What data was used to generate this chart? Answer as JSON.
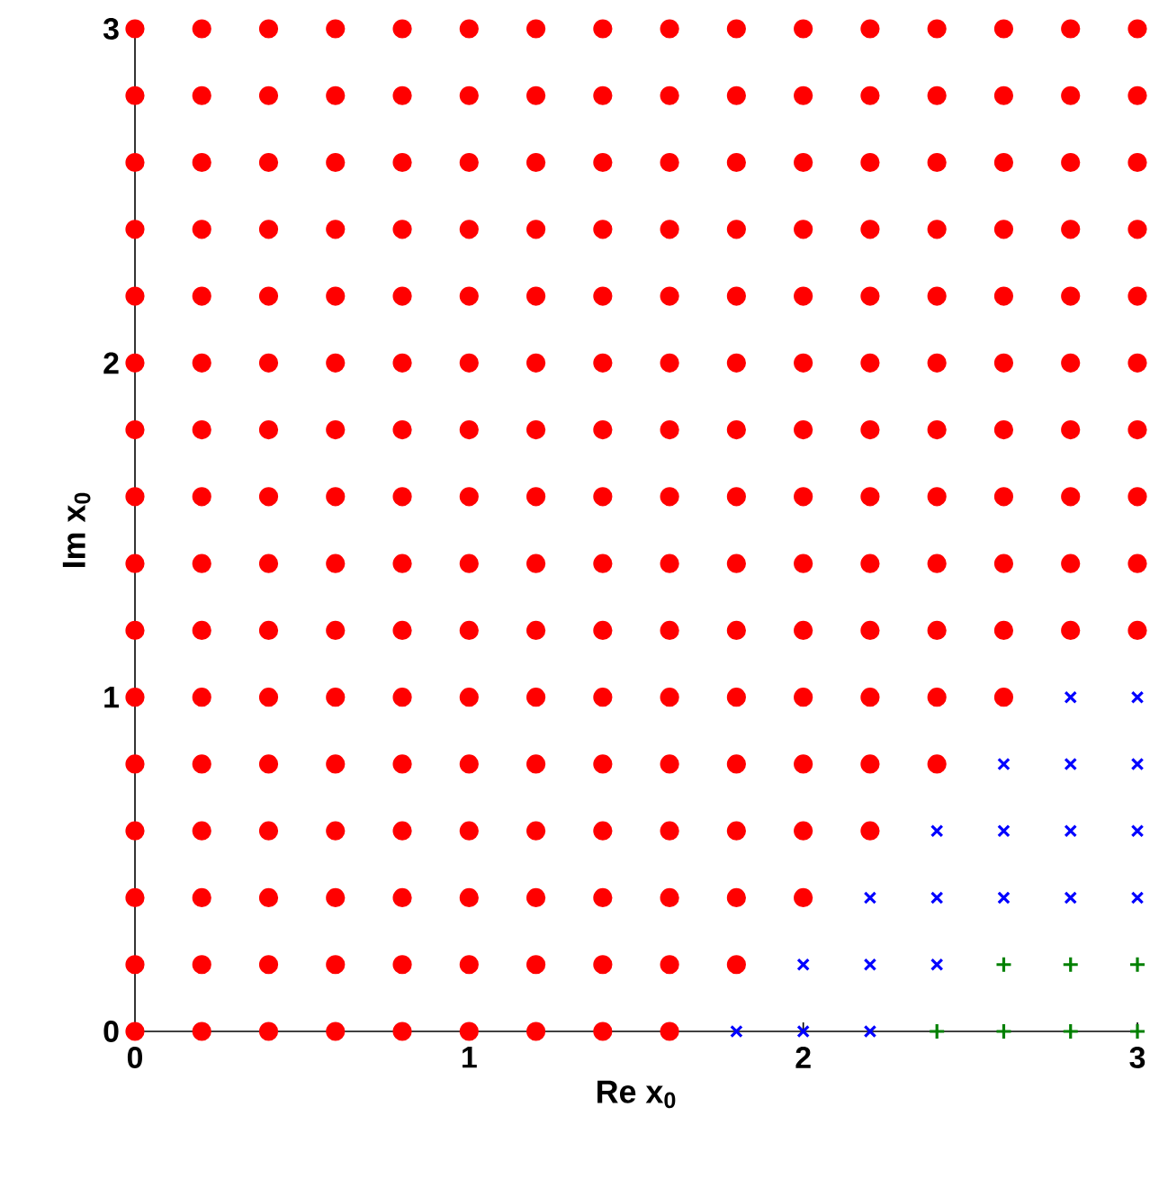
{
  "chart_data": {
    "type": "scatter",
    "xlabel": "Re x$_{0}$",
    "ylabel": "Im x$_{0}$",
    "xlim": [
      0,
      3
    ],
    "ylim": [
      0,
      3
    ],
    "xticks": [
      0,
      1,
      2,
      3
    ],
    "yticks": [
      0,
      1,
      2,
      3
    ],
    "series": [
      {
        "color": "#ff0000",
        "marker": "circle",
        "x": [
          0,
          0.2,
          0.4,
          0.6,
          0.8,
          1,
          1.2,
          1.4,
          1.6,
          0,
          0.2,
          0.4,
          0.6,
          0.8,
          1,
          1.2,
          1.4,
          1.6,
          1.8,
          0,
          0.2,
          0.4,
          0.6,
          0.8,
          1,
          1.2,
          1.4,
          1.6,
          1.8,
          2,
          0,
          0.2,
          0.4,
          0.6,
          0.8,
          1,
          1.2,
          1.4,
          1.6,
          1.8,
          2,
          2.2,
          0,
          0.2,
          0.4,
          0.6,
          0.8,
          1,
          1.2,
          1.4,
          1.6,
          1.8,
          2,
          2.2,
          2.4,
          0,
          0.2,
          0.4,
          0.6,
          0.8,
          1,
          1.2,
          1.4,
          1.6,
          1.8,
          2,
          2.2,
          2.4,
          2.6,
          0,
          0.2,
          0.4,
          0.6,
          0.8,
          1,
          1.2,
          1.4,
          1.6,
          1.8,
          2,
          2.2,
          2.4,
          2.6,
          2.8,
          3,
          0,
          0.2,
          0.4,
          0.6,
          0.8,
          1,
          1.2,
          1.4,
          1.6,
          1.8,
          2,
          2.2,
          2.4,
          2.6,
          2.8,
          3,
          0,
          0.2,
          0.4,
          0.6,
          0.8,
          1,
          1.2,
          1.4,
          1.6,
          1.8,
          2,
          2.2,
          2.4,
          2.6,
          2.8,
          3,
          0,
          0.2,
          0.4,
          0.6,
          0.8,
          1,
          1.2,
          1.4,
          1.6,
          1.8,
          2,
          2.2,
          2.4,
          2.6,
          2.8,
          3,
          0,
          0.2,
          0.4,
          0.6,
          0.8,
          1,
          1.2,
          1.4,
          1.6,
          1.8,
          2,
          2.2,
          2.4,
          2.6,
          2.8,
          3,
          0,
          0.2,
          0.4,
          0.6,
          0.8,
          1,
          1.2,
          1.4,
          1.6,
          1.8,
          2,
          2.2,
          2.4,
          2.6,
          2.8,
          3,
          0,
          0.2,
          0.4,
          0.6,
          0.8,
          1,
          1.2,
          1.4,
          1.6,
          1.8,
          2,
          2.2,
          2.4,
          2.6,
          2.8,
          3,
          0,
          0.2,
          0.4,
          0.6,
          0.8,
          1,
          1.2,
          1.4,
          1.6,
          1.8,
          2,
          2.2,
          2.4,
          2.6,
          2.8,
          3,
          0,
          0.2,
          0.4,
          0.6,
          0.8,
          1,
          1.2,
          1.4,
          1.6,
          1.8,
          2,
          2.2,
          2.4,
          2.6,
          2.8,
          3,
          0,
          0.2,
          0.4,
          0.6,
          0.8,
          1,
          1.2,
          1.4,
          1.6,
          1.8,
          2,
          2.2,
          2.4,
          2.6,
          2.8,
          3
        ],
        "values": [
          0,
          0,
          0,
          0,
          0,
          0,
          0,
          0,
          0,
          0.2,
          0.2,
          0.2,
          0.2,
          0.2,
          0.2,
          0.2,
          0.2,
          0.2,
          0.2,
          0.4,
          0.4,
          0.4,
          0.4,
          0.4,
          0.4,
          0.4,
          0.4,
          0.4,
          0.4,
          0.4,
          0.6,
          0.6,
          0.6,
          0.6,
          0.6,
          0.6,
          0.6,
          0.6,
          0.6,
          0.6,
          0.6,
          0.6,
          0.8,
          0.8,
          0.8,
          0.8,
          0.8,
          0.8,
          0.8,
          0.8,
          0.8,
          0.8,
          0.8,
          0.8,
          0.8,
          1,
          1,
          1,
          1,
          1,
          1,
          1,
          1,
          1,
          1,
          1,
          1,
          1,
          1,
          1.2,
          1.2,
          1.2,
          1.2,
          1.2,
          1.2,
          1.2,
          1.2,
          1.2,
          1.2,
          1.2,
          1.2,
          1.2,
          1.2,
          1.2,
          1.2,
          1.4,
          1.4,
          1.4,
          1.4,
          1.4,
          1.4,
          1.4,
          1.4,
          1.4,
          1.4,
          1.4,
          1.4,
          1.4,
          1.4,
          1.4,
          1.4,
          1.6,
          1.6,
          1.6,
          1.6,
          1.6,
          1.6,
          1.6,
          1.6,
          1.6,
          1.6,
          1.6,
          1.6,
          1.6,
          1.6,
          1.6,
          1.6,
          1.8,
          1.8,
          1.8,
          1.8,
          1.8,
          1.8,
          1.8,
          1.8,
          1.8,
          1.8,
          1.8,
          1.8,
          1.8,
          1.8,
          1.8,
          1.8,
          2,
          2,
          2,
          2,
          2,
          2,
          2,
          2,
          2,
          2,
          2,
          2,
          2,
          2,
          2,
          2,
          2.2,
          2.2,
          2.2,
          2.2,
          2.2,
          2.2,
          2.2,
          2.2,
          2.2,
          2.2,
          2.2,
          2.2,
          2.2,
          2.2,
          2.2,
          2.2,
          2.4,
          2.4,
          2.4,
          2.4,
          2.4,
          2.4,
          2.4,
          2.4,
          2.4,
          2.4,
          2.4,
          2.4,
          2.4,
          2.4,
          2.4,
          2.4,
          2.6,
          2.6,
          2.6,
          2.6,
          2.6,
          2.6,
          2.6,
          2.6,
          2.6,
          2.6,
          2.6,
          2.6,
          2.6,
          2.6,
          2.6,
          2.6,
          2.8,
          2.8,
          2.8,
          2.8,
          2.8,
          2.8,
          2.8,
          2.8,
          2.8,
          2.8,
          2.8,
          2.8,
          2.8,
          2.8,
          2.8,
          2.8,
          3,
          3,
          3,
          3,
          3,
          3,
          3,
          3,
          3,
          3,
          3,
          3,
          3,
          3,
          3,
          3
        ]
      },
      {
        "color": "#0000ff",
        "marker": "cross",
        "x": [
          1.8,
          2,
          2.2,
          2,
          2.2,
          2.4,
          2.2,
          2.4,
          2.6,
          2.8,
          3,
          2.4,
          2.6,
          2.8,
          3,
          2.6,
          2.8,
          3,
          2.8,
          3
        ],
        "values": [
          0,
          0,
          0,
          0.2,
          0.2,
          0.2,
          0.4,
          0.4,
          0.4,
          0.4,
          0.4,
          0.6,
          0.6,
          0.6,
          0.6,
          0.8,
          0.8,
          0.8,
          1,
          1
        ]
      },
      {
        "color": "#008000",
        "marker": "plus",
        "x": [
          2.4,
          2.6,
          2.8,
          3,
          2.6,
          2.8,
          3
        ],
        "values": [
          0,
          0,
          0,
          0,
          0.2,
          0.2,
          0.2
        ]
      }
    ]
  }
}
